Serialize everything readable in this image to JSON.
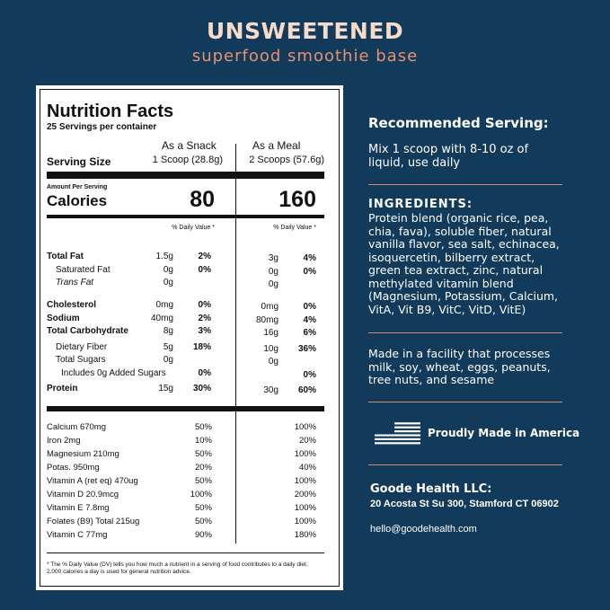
{
  "header": {
    "title": "UNSWEETENED",
    "subtitle": "superfood smoothie base"
  },
  "nutrition": {
    "title": "Nutrition Facts",
    "servings": "25 Servings per container",
    "columns": [
      "As a Snack",
      "As a Meal"
    ],
    "serving_size_label": "Serving Size",
    "serving_sizes": [
      "1 Scoop (28.8g)",
      "2 Scoops (57.6g)"
    ],
    "amount_per_serving": "Amount Per Serving",
    "calories_label": "Calories",
    "calories": [
      80,
      160
    ],
    "daily_value_header": "% Daily Value *",
    "rows": [
      {
        "label": "Total Fat",
        "snack": "1.5g",
        "snack_dv": "2%",
        "meal": "3g",
        "meal_dv": "4%"
      },
      {
        "label": "Saturated Fat",
        "snack": "0g",
        "snack_dv": "0%",
        "meal": "0g",
        "meal_dv": "0%"
      },
      {
        "label": "Trans Fat",
        "snack": "0g",
        "snack_dv": null,
        "meal": "0g",
        "meal_dv": null
      },
      {
        "label": "Cholesterol",
        "snack": "0mg",
        "snack_dv": "0%",
        "meal": "0mg",
        "meal_dv": "0%"
      },
      {
        "label": "Sodium",
        "snack": "40mg",
        "snack_dv": "2%",
        "meal": "80mg",
        "meal_dv": "4%"
      },
      {
        "label": "Total Carbohydrate",
        "snack": "8g",
        "snack_dv": "3%",
        "meal": "16g",
        "meal_dv": "6%"
      },
      {
        "label": "Dietary Fiber",
        "snack": "5g",
        "snack_dv": "18%",
        "meal": "10g",
        "meal_dv": "36%"
      },
      {
        "label": "Total Sugars",
        "snack": "0g",
        "snack_dv": null,
        "meal": "0g",
        "meal_dv": null
      },
      {
        "label": "Includes 0g Added Sugars",
        "snack": null,
        "snack_dv": "0%",
        "meal": null,
        "meal_dv": "0%"
      },
      {
        "label": "Protein",
        "snack": "15g",
        "snack_dv": "30%",
        "meal": "30g",
        "meal_dv": "60%"
      }
    ],
    "vitamins": [
      {
        "label": "Calcium 670mg",
        "snack_dv": "50%",
        "meal_dv": "100%"
      },
      {
        "label": "Iron 2mg",
        "snack_dv": "10%",
        "meal_dv": "20%"
      },
      {
        "label": "Magnesium 210mg",
        "snack_dv": "50%",
        "meal_dv": "100%"
      },
      {
        "label": "Potas. 950mg",
        "snack_dv": "20%",
        "meal_dv": "40%"
      },
      {
        "label": "Vitamin A (ret eq) 470ug",
        "snack_dv": "50%",
        "meal_dv": "100%"
      },
      {
        "label": "Vitamin D 20.9mcg",
        "snack_dv": "100%",
        "meal_dv": "200%"
      },
      {
        "label": "Vitamin E 7.8mg",
        "snack_dv": "50%",
        "meal_dv": "100%"
      },
      {
        "label": "Folates (B9) Total 215ug",
        "snack_dv": "50%",
        "meal_dv": "100%"
      },
      {
        "label": "Vitamin C 77mg",
        "snack_dv": "90%",
        "meal_dv": "180%"
      }
    ],
    "footnote": "* The % Daily Value (DV) tells you how much a nutrient in a serving of food contributes to a daily diet. 2,000 calories a day is used for general nutrition advice."
  },
  "info": {
    "recommended_title": "Recommended Serving:",
    "recommended_text": "Mix 1 scoop with 8-10 oz of liquid, use daily",
    "ingredients_title": "INGREDIENTS:",
    "ingredients_text": "Protein blend (organic rice, pea, chia, fava), soluble fiber, natural vanilla flavor, sea salt, echinacea, isoquercetin, bilberry extract, green tea extract, zinc, natural methylated vitamin blend (Magnesium, Potassium, Calcium, VitA, Vit B9, VitC, VitD, VitE)",
    "allergen_text": "Made in a facility that processes milk, soy, wheat, eggs, peanuts, tree nuts, and sesame",
    "made_in": "Proudly Made in America",
    "company": "Goode Health LLC:",
    "address": "20 Acosta St Su 300, Stamford CT 06902",
    "email": "hello@goodehealth.com"
  }
}
